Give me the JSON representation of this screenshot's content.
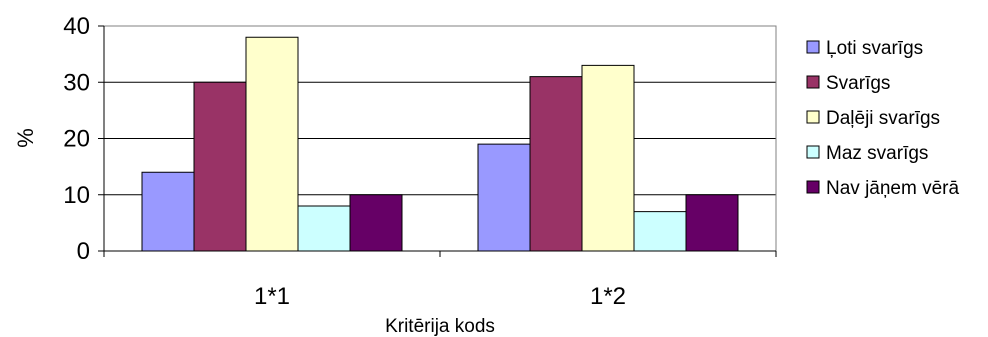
{
  "chart_data": {
    "type": "bar",
    "categories": [
      "1*1",
      "1*2"
    ],
    "series": [
      {
        "name": "Ļoti svarīgs",
        "values": [
          14,
          19
        ],
        "color": "#9999FF"
      },
      {
        "name": "Svarīgs",
        "values": [
          30,
          31
        ],
        "color": "#993366"
      },
      {
        "name": "Daļēji svarīgs",
        "values": [
          38,
          33
        ],
        "color": "#FFFFCC"
      },
      {
        "name": "Maz svarīgs",
        "values": [
          8,
          7
        ],
        "color": "#CCFFFF"
      },
      {
        "name": "Nav jāņem vērā",
        "values": [
          10,
          10
        ],
        "color": "#660066"
      }
    ],
    "xlabel": "Kritērija kods",
    "ylabel": "%",
    "ylim": [
      0,
      40
    ],
    "yticks": [
      "0",
      "10",
      "20",
      "30",
      "40"
    ],
    "grid": true,
    "legend": "right"
  }
}
